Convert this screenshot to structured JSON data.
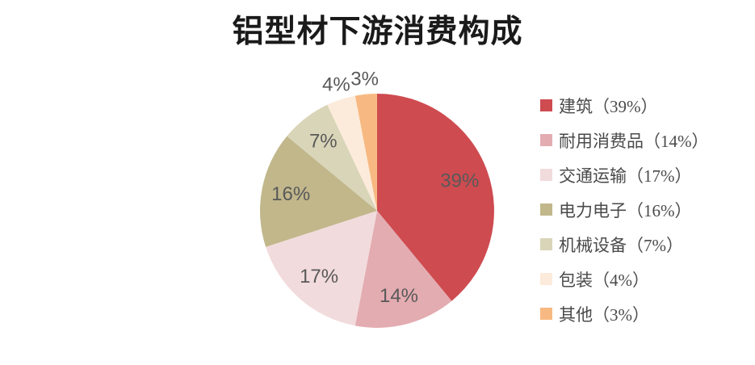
{
  "chart_data": {
    "type": "pie",
    "title": "铝型材下游消费构成",
    "categories": [
      "建筑",
      "耐用消费品",
      "交通运输",
      "电力电子",
      "机械设备",
      "包装",
      "其他"
    ],
    "values": [
      39,
      14,
      17,
      16,
      7,
      4,
      3
    ],
    "unit": "%",
    "slice_labels": [
      "39%",
      "14%",
      "17%",
      "16%",
      "7%",
      "4%",
      "3%"
    ],
    "legend_labels": [
      "建筑（39%）",
      "耐用消费品（14%）",
      "交通运输（17%）",
      "电力电子（16%）",
      "机械设备（7%）",
      "包装（4%）",
      "其他（3%）"
    ],
    "colors": [
      "#ce4b50",
      "#e3acb1",
      "#f2dbdc",
      "#c1b78b",
      "#d9d5b8",
      "#fcebda",
      "#f7b981"
    ],
    "label_color": "#595959",
    "title_color": "#1a1a1a",
    "legend_text_color": "#4a4a4a",
    "background": "#ffffff",
    "legend_position": "right",
    "start_angle_deg": 0,
    "direction": "clockwise"
  }
}
